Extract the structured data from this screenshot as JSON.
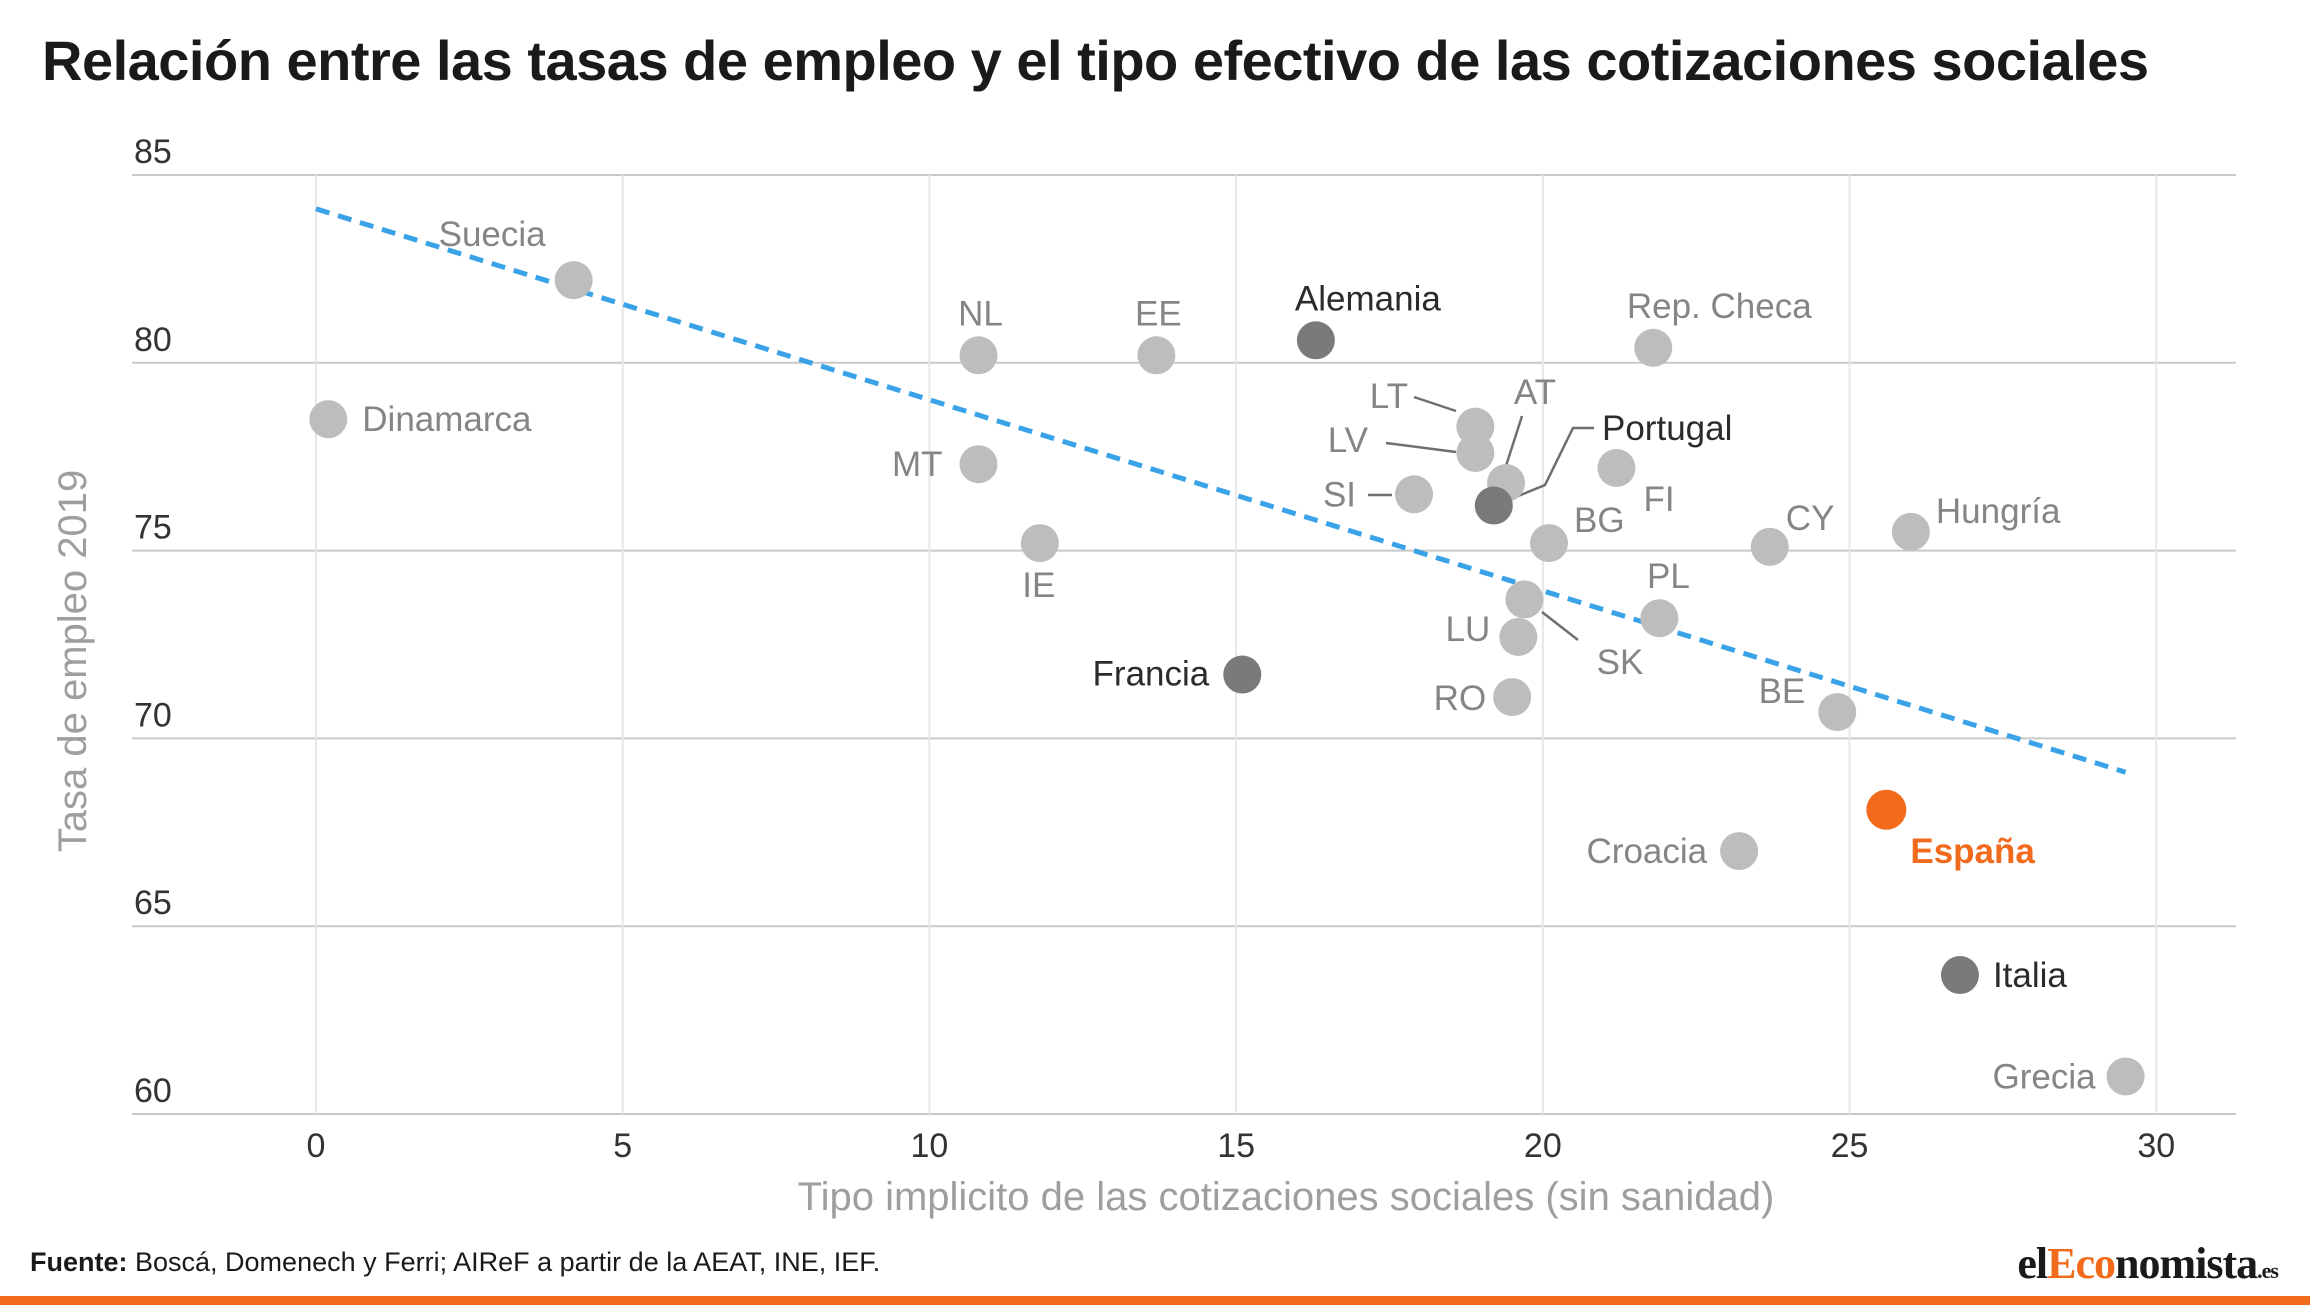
{
  "title": "Relación entre las tasas de empleo y el tipo efectivo de las cotizaciones sociales",
  "chart_data": {
    "type": "scatter",
    "title": "Relación entre las tasas de empleo y el tipo efectivo de las cotizaciones sociales",
    "xlabel": "Tipo implicito de las cotizaciones sociales (sin sanidad)",
    "ylabel": "Tasa de empleo 2019",
    "xlim": [
      -3,
      31.3
    ],
    "ylim": [
      60,
      85
    ],
    "x_ticks": [
      0,
      5,
      10,
      15,
      20,
      25,
      30
    ],
    "y_ticks": [
      60,
      65,
      70,
      75,
      80,
      85
    ],
    "grid": true,
    "legend": "none",
    "trendline": {
      "x": [
        0,
        29.5
      ],
      "y": [
        84.1,
        69.1
      ],
      "color": "#3aa3e8"
    },
    "colors": {
      "default": "#bdbdbd",
      "highlight": "#7a7a7a",
      "spain": "#f26b1d",
      "label_default": "#858585",
      "label_highlight": "#2b2b2b"
    },
    "points": [
      {
        "label": "Suecia",
        "x": 4.2,
        "y": 82.2,
        "style": "default"
      },
      {
        "label": "Dinamarca",
        "x": 0.2,
        "y": 78.5,
        "style": "default"
      },
      {
        "label": "NL",
        "x": 10.8,
        "y": 80.2,
        "style": "default"
      },
      {
        "label": "EE",
        "x": 13.7,
        "y": 80.2,
        "style": "default"
      },
      {
        "label": "Alemania",
        "x": 16.3,
        "y": 80.6,
        "style": "highlight"
      },
      {
        "label": "Rep. Checa",
        "x": 21.8,
        "y": 80.4,
        "style": "default"
      },
      {
        "label": "MT",
        "x": 10.8,
        "y": 77.3,
        "style": "default"
      },
      {
        "label": "IE",
        "x": 11.8,
        "y": 75.2,
        "style": "default"
      },
      {
        "label": "LT",
        "x": 18.9,
        "y": 78.3,
        "style": "default"
      },
      {
        "label": "LV",
        "x": 18.9,
        "y": 77.6,
        "style": "default"
      },
      {
        "label": "AT",
        "x": 19.4,
        "y": 76.8,
        "style": "default"
      },
      {
        "label": "SI",
        "x": 17.9,
        "y": 76.5,
        "style": "default"
      },
      {
        "label": "Portugal",
        "x": 19.2,
        "y": 76.2,
        "style": "highlight"
      },
      {
        "label": "FI",
        "x": 21.2,
        "y": 77.2,
        "style": "default"
      },
      {
        "label": "BG",
        "x": 20.1,
        "y": 75.2,
        "style": "default"
      },
      {
        "label": "CY",
        "x": 23.7,
        "y": 75.1,
        "style": "default"
      },
      {
        "label": "Hungría",
        "x": 26.0,
        "y": 75.5,
        "style": "default"
      },
      {
        "label": "SK",
        "x": 19.7,
        "y": 73.7,
        "style": "default"
      },
      {
        "label": "PL",
        "x": 21.9,
        "y": 73.2,
        "style": "default"
      },
      {
        "label": "LU",
        "x": 19.6,
        "y": 72.7,
        "style": "default"
      },
      {
        "label": "Francia",
        "x": 15.1,
        "y": 71.7,
        "style": "highlight"
      },
      {
        "label": "RO",
        "x": 19.5,
        "y": 71.1,
        "style": "default"
      },
      {
        "label": "BE",
        "x": 24.8,
        "y": 70.7,
        "style": "default"
      },
      {
        "label": "España",
        "x": 25.6,
        "y": 68.1,
        "style": "spain"
      },
      {
        "label": "Croacia",
        "x": 23.2,
        "y": 67.0,
        "style": "default"
      },
      {
        "label": "Italia",
        "x": 26.8,
        "y": 63.7,
        "style": "highlight"
      },
      {
        "label": "Grecia",
        "x": 29.5,
        "y": 61.0,
        "style": "default"
      }
    ]
  },
  "footer": {
    "source_label": "Fuente:",
    "source_text": " Boscá, Domenech y Ferri; AIReF a partir de la AEAT, INE, IEF."
  },
  "brand": {
    "part1": "el",
    "part2": "Eco",
    "part3": "nomista",
    "tld": ".es"
  }
}
